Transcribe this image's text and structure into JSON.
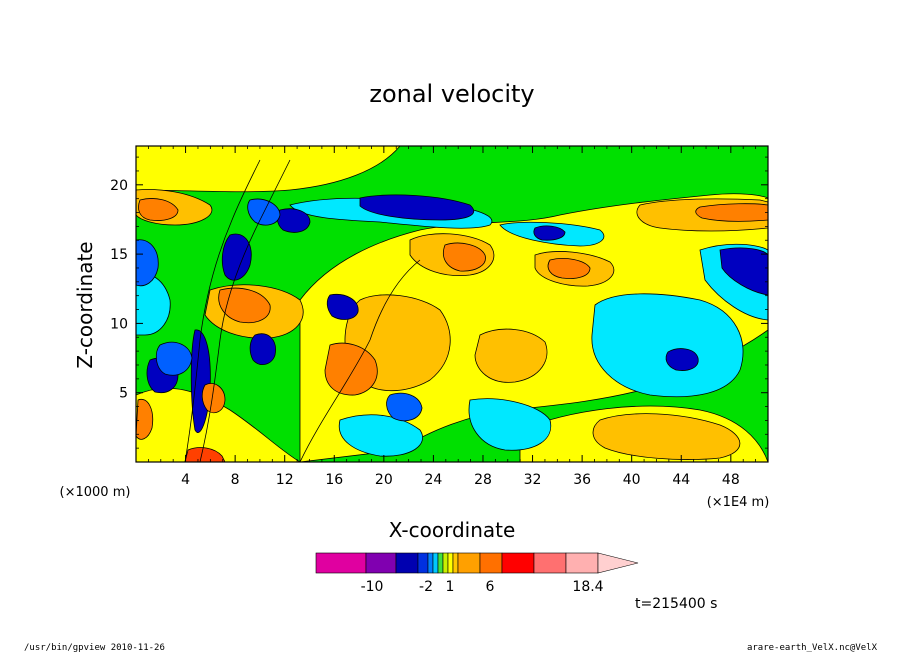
{
  "chart_data": {
    "type": "heatmap",
    "title": "zonal velocity",
    "xlabel": "X-coordinate",
    "ylabel": "Z-coordinate",
    "x_unit": "(×1000 m)",
    "x_unit_right": "(×1E4 m)",
    "x_ticks": [
      4,
      8,
      12,
      16,
      20,
      24,
      28,
      32,
      36,
      40,
      44,
      48
    ],
    "y_ticks": [
      5,
      10,
      15,
      20
    ],
    "xlim": [
      0,
      51
    ],
    "ylim": [
      0,
      22.8
    ],
    "colorbar": {
      "tick_labels": [
        "-10",
        "-2",
        "1",
        "6",
        "18.4"
      ],
      "tick_values": [
        -10,
        -2,
        1,
        6,
        18.4
      ],
      "colors": [
        "#e000a0",
        "#8000b0",
        "#0000b0",
        "#0030e0",
        "#0080ff",
        "#00c8ff",
        "#40e040",
        "#c8f000",
        "#ffff00",
        "#ffc800",
        "#ffa000",
        "#ff7000",
        "#ff0000",
        "#ff7070",
        "#ffb0b0",
        "#ffd0d0"
      ]
    },
    "time_label": "t=215400 s",
    "footer_left": "/usr/bin/gpview  2010-11-26",
    "footer_right": "arare-earth_VelX.nc@VelX",
    "colors": {
      "background": "#00e000",
      "neg_strong": "#0000c0",
      "neg_mid": "#0060ff",
      "neg_weak": "#00e8ff",
      "pos_weak": "#ffff00",
      "pos_mid": "#ffc000",
      "pos_strong": "#ff8000",
      "pos_max": "#ff4000"
    }
  }
}
